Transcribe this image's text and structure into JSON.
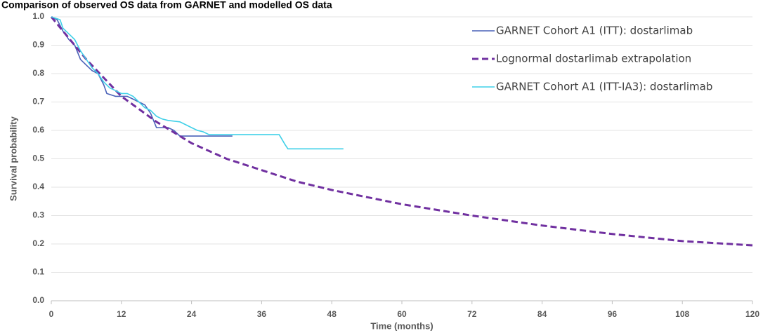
{
  "chart_data": {
    "type": "line",
    "title": "Comparison of observed OS data from GARNET and modelled OS data",
    "x_label": "Time (months)",
    "y_label": "Survival probability",
    "xlim": [
      0,
      120
    ],
    "xticks": [
      0,
      12,
      24,
      36,
      48,
      60,
      72,
      84,
      96,
      108,
      120
    ],
    "ylim": [
      0,
      1
    ],
    "yticks": [
      {
        "value": 0,
        "label": "0.0"
      },
      0.1,
      0.2,
      0.3,
      0.4,
      0.5,
      0.6,
      0.7,
      0.8,
      0.9,
      {
        "value": 1,
        "label": "1.0"
      }
    ],
    "grid": true,
    "legend": "upper right",
    "series": [
      {
        "name": "GARNET Cohort A1 (ITT): dostarlimab",
        "color": "#4a62b8",
        "style": "solid",
        "x": [
          0,
          1,
          2,
          3,
          4,
          5,
          6,
          7,
          8,
          9,
          9.5,
          11,
          13,
          14,
          15,
          16,
          17,
          18,
          20,
          21,
          22,
          31
        ],
        "values": [
          1.0,
          0.99,
          0.95,
          0.92,
          0.9,
          0.85,
          0.83,
          0.81,
          0.8,
          0.76,
          0.73,
          0.72,
          0.72,
          0.71,
          0.7,
          0.69,
          0.66,
          0.61,
          0.61,
          0.6,
          0.58,
          0.58
        ]
      },
      {
        "name": "Lognormal dostarlimab extrapolation",
        "color": "#7030a0",
        "style": "dashed",
        "x": [
          0,
          6,
          12,
          18,
          24,
          30,
          36,
          42,
          48,
          60,
          72,
          84,
          96,
          108,
          120
        ],
        "values": [
          1.0,
          0.85,
          0.72,
          0.63,
          0.555,
          0.5,
          0.46,
          0.42,
          0.39,
          0.34,
          0.3,
          0.265,
          0.235,
          0.21,
          0.195
        ]
      },
      {
        "name": "GARNET Cohort A1 (ITT-IA3): dostarlimab",
        "color": "#3fd0e8",
        "style": "solid",
        "x": [
          0,
          1.5,
          2,
          3,
          4,
          5,
          6,
          7,
          8,
          9,
          10,
          11,
          12,
          13,
          14,
          15,
          16,
          17,
          18,
          19,
          20,
          22,
          23,
          24,
          25,
          26,
          27,
          39,
          40,
          40.5,
          50
        ],
        "values": [
          1.0,
          0.99,
          0.96,
          0.94,
          0.92,
          0.88,
          0.85,
          0.82,
          0.8,
          0.77,
          0.75,
          0.74,
          0.73,
          0.73,
          0.72,
          0.7,
          0.68,
          0.67,
          0.65,
          0.64,
          0.635,
          0.63,
          0.62,
          0.61,
          0.6,
          0.595,
          0.585,
          0.585,
          0.55,
          0.535,
          0.535
        ]
      }
    ]
  }
}
